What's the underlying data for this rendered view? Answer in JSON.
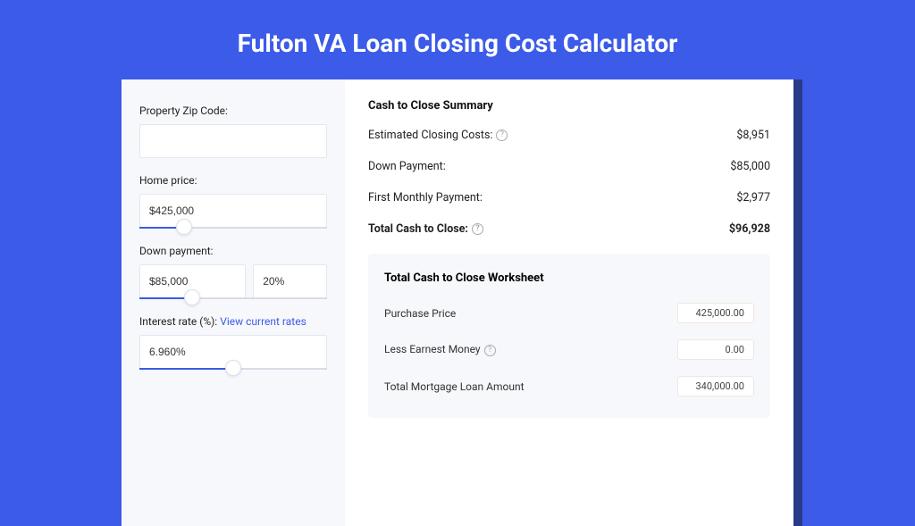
{
  "page": {
    "title": "Fulton VA Loan Closing Cost Calculator",
    "background_color": "#3b5be8",
    "shadow_color": "#2a3a8a"
  },
  "form": {
    "zip": {
      "label": "Property Zip Code:",
      "value": ""
    },
    "home_price": {
      "label": "Home price:",
      "value": "$425,000",
      "slider_pct": 24
    },
    "down_payment": {
      "label": "Down payment:",
      "value": "$85,000",
      "pct_value": "20%",
      "slider_pct": 28
    },
    "interest": {
      "label": "Interest rate (%):",
      "link_text": "View current rates",
      "value": "6.960%",
      "slider_pct": 50
    }
  },
  "summary": {
    "title": "Cash to Close Summary",
    "rows": [
      {
        "label": "Estimated Closing Costs:",
        "help": true,
        "value": "$8,951",
        "bold": false
      },
      {
        "label": "Down Payment:",
        "help": false,
        "value": "$85,000",
        "bold": false
      },
      {
        "label": "First Monthly Payment:",
        "help": false,
        "value": "$2,977",
        "bold": false
      },
      {
        "label": "Total Cash to Close:",
        "help": true,
        "value": "$96,928",
        "bold": true
      }
    ]
  },
  "worksheet": {
    "title": "Total Cash to Close Worksheet",
    "rows": [
      {
        "label": "Purchase Price",
        "help": false,
        "value": "425,000.00"
      },
      {
        "label": "Less Earnest Money",
        "help": true,
        "value": "0.00"
      },
      {
        "label": "Total Mortgage Loan Amount",
        "help": false,
        "value": "340,000.00"
      }
    ]
  }
}
